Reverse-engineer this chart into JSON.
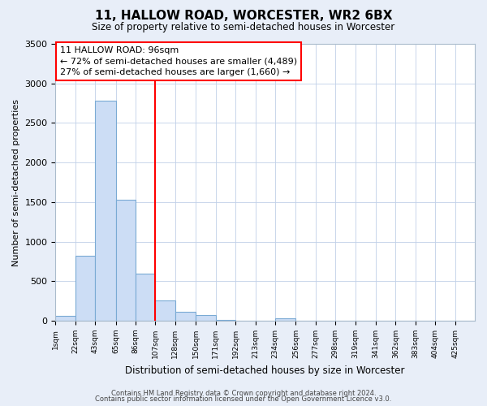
{
  "title": "11, HALLOW ROAD, WORCESTER, WR2 6BX",
  "subtitle": "Size of property relative to semi-detached houses in Worcester",
  "xlabel": "Distribution of semi-detached houses by size in Worcester",
  "ylabel": "Number of semi-detached properties",
  "bar_labels": [
    "1sqm",
    "22sqm",
    "43sqm",
    "65sqm",
    "86sqm",
    "107sqm",
    "128sqm",
    "150sqm",
    "171sqm",
    "192sqm",
    "213sqm",
    "234sqm",
    "256sqm",
    "277sqm",
    "298sqm",
    "319sqm",
    "341sqm",
    "362sqm",
    "383sqm",
    "404sqm",
    "425sqm"
  ],
  "bar_values": [
    60,
    820,
    2780,
    1530,
    600,
    260,
    110,
    70,
    10,
    0,
    0,
    30,
    0,
    0,
    0,
    0,
    0,
    0,
    0,
    0,
    0
  ],
  "bar_color": "#ccddf5",
  "bar_edge_color": "#7aaad4",
  "property_line_x": 107,
  "bin_edges": [
    1,
    22,
    43,
    65,
    86,
    107,
    128,
    150,
    171,
    192,
    213,
    234,
    256,
    277,
    298,
    319,
    341,
    362,
    383,
    404,
    425,
    446
  ],
  "annotation_title": "11 HALLOW ROAD: 96sqm",
  "annotation_line1": "← 72% of semi-detached houses are smaller (4,489)",
  "annotation_line2": "27% of semi-detached houses are larger (1,660) →",
  "ylim": [
    0,
    3500
  ],
  "yticks": [
    0,
    500,
    1000,
    1500,
    2000,
    2500,
    3000,
    3500
  ],
  "footnote1": "Contains HM Land Registry data © Crown copyright and database right 2024.",
  "footnote2": "Contains public sector information licensed under the Open Government Licence v3.0.",
  "bg_color": "#e8eef8",
  "plot_bg_color": "#ffffff",
  "grid_color": "#c0d0e8"
}
